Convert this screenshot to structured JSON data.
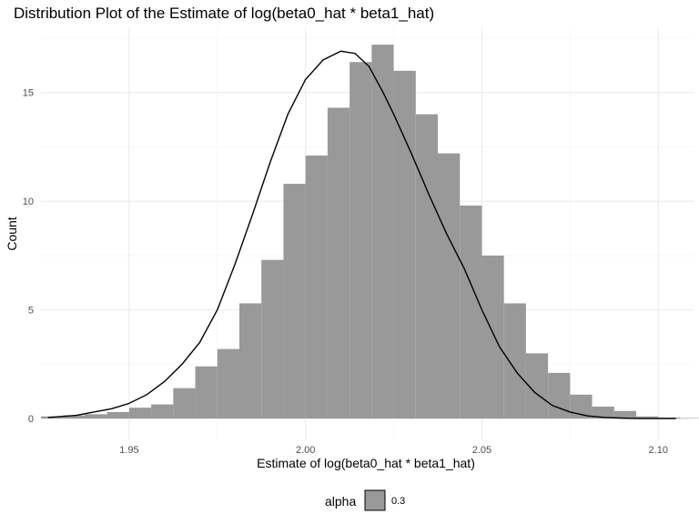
{
  "chart_data": {
    "type": "bar",
    "title": "Distribution Plot of the Estimate of log(beta0_hat * beta1_hat)",
    "xlabel": "Estimate of log(beta0_hat * beta1_hat)",
    "ylabel": "Count",
    "xlim": [
      1.925,
      2.11
    ],
    "ylim": [
      -1.0,
      18.0
    ],
    "x_ticks": [
      1.95,
      2.0,
      2.05,
      2.1
    ],
    "x_tick_labels": [
      "1.95",
      "2.00",
      "2.05",
      "2.10"
    ],
    "y_ticks": [
      0,
      5,
      10,
      15
    ],
    "y_tick_labels": [
      "0",
      "5",
      "10",
      "15"
    ],
    "grid": true,
    "bin_width": 0.00625,
    "bins_start": 1.925,
    "bar_heights": [
      0.1,
      0.15,
      0.2,
      0.3,
      0.5,
      0.65,
      1.4,
      2.4,
      3.2,
      5.3,
      7.3,
      10.8,
      12.1,
      14.3,
      16.4,
      17.2,
      16.0,
      14.0,
      12.2,
      9.8,
      7.5,
      5.3,
      3.0,
      2.1,
      1.1,
      0.55,
      0.35,
      0.1,
      0.05,
      0.02
    ],
    "bar_color": "#999999",
    "density_curve": {
      "x": [
        1.927,
        1.935,
        1.94,
        1.945,
        1.95,
        1.955,
        1.96,
        1.965,
        1.97,
        1.975,
        1.98,
        1.985,
        1.99,
        1.995,
        2.0,
        2.005,
        2.01,
        2.014,
        2.018,
        2.022,
        2.025,
        2.03,
        2.035,
        2.04,
        2.045,
        2.05,
        2.055,
        2.06,
        2.065,
        2.07,
        2.075,
        2.08,
        2.085,
        2.09,
        2.095,
        2.1,
        2.105
      ],
      "y": [
        0.05,
        0.15,
        0.3,
        0.45,
        0.7,
        1.1,
        1.7,
        2.5,
        3.5,
        5.0,
        7.1,
        9.4,
        11.8,
        14.0,
        15.6,
        16.5,
        16.9,
        16.8,
        16.2,
        15.0,
        14.0,
        12.2,
        10.3,
        8.5,
        6.9,
        5.0,
        3.3,
        2.1,
        1.2,
        0.6,
        0.3,
        0.12,
        0.05,
        0.02,
        0.0,
        0.0,
        0.0
      ],
      "color": "#000000"
    },
    "legend": {
      "placement": "bottom",
      "title": "alpha",
      "items": [
        {
          "label": "0.3",
          "color": "#999999"
        }
      ]
    }
  }
}
